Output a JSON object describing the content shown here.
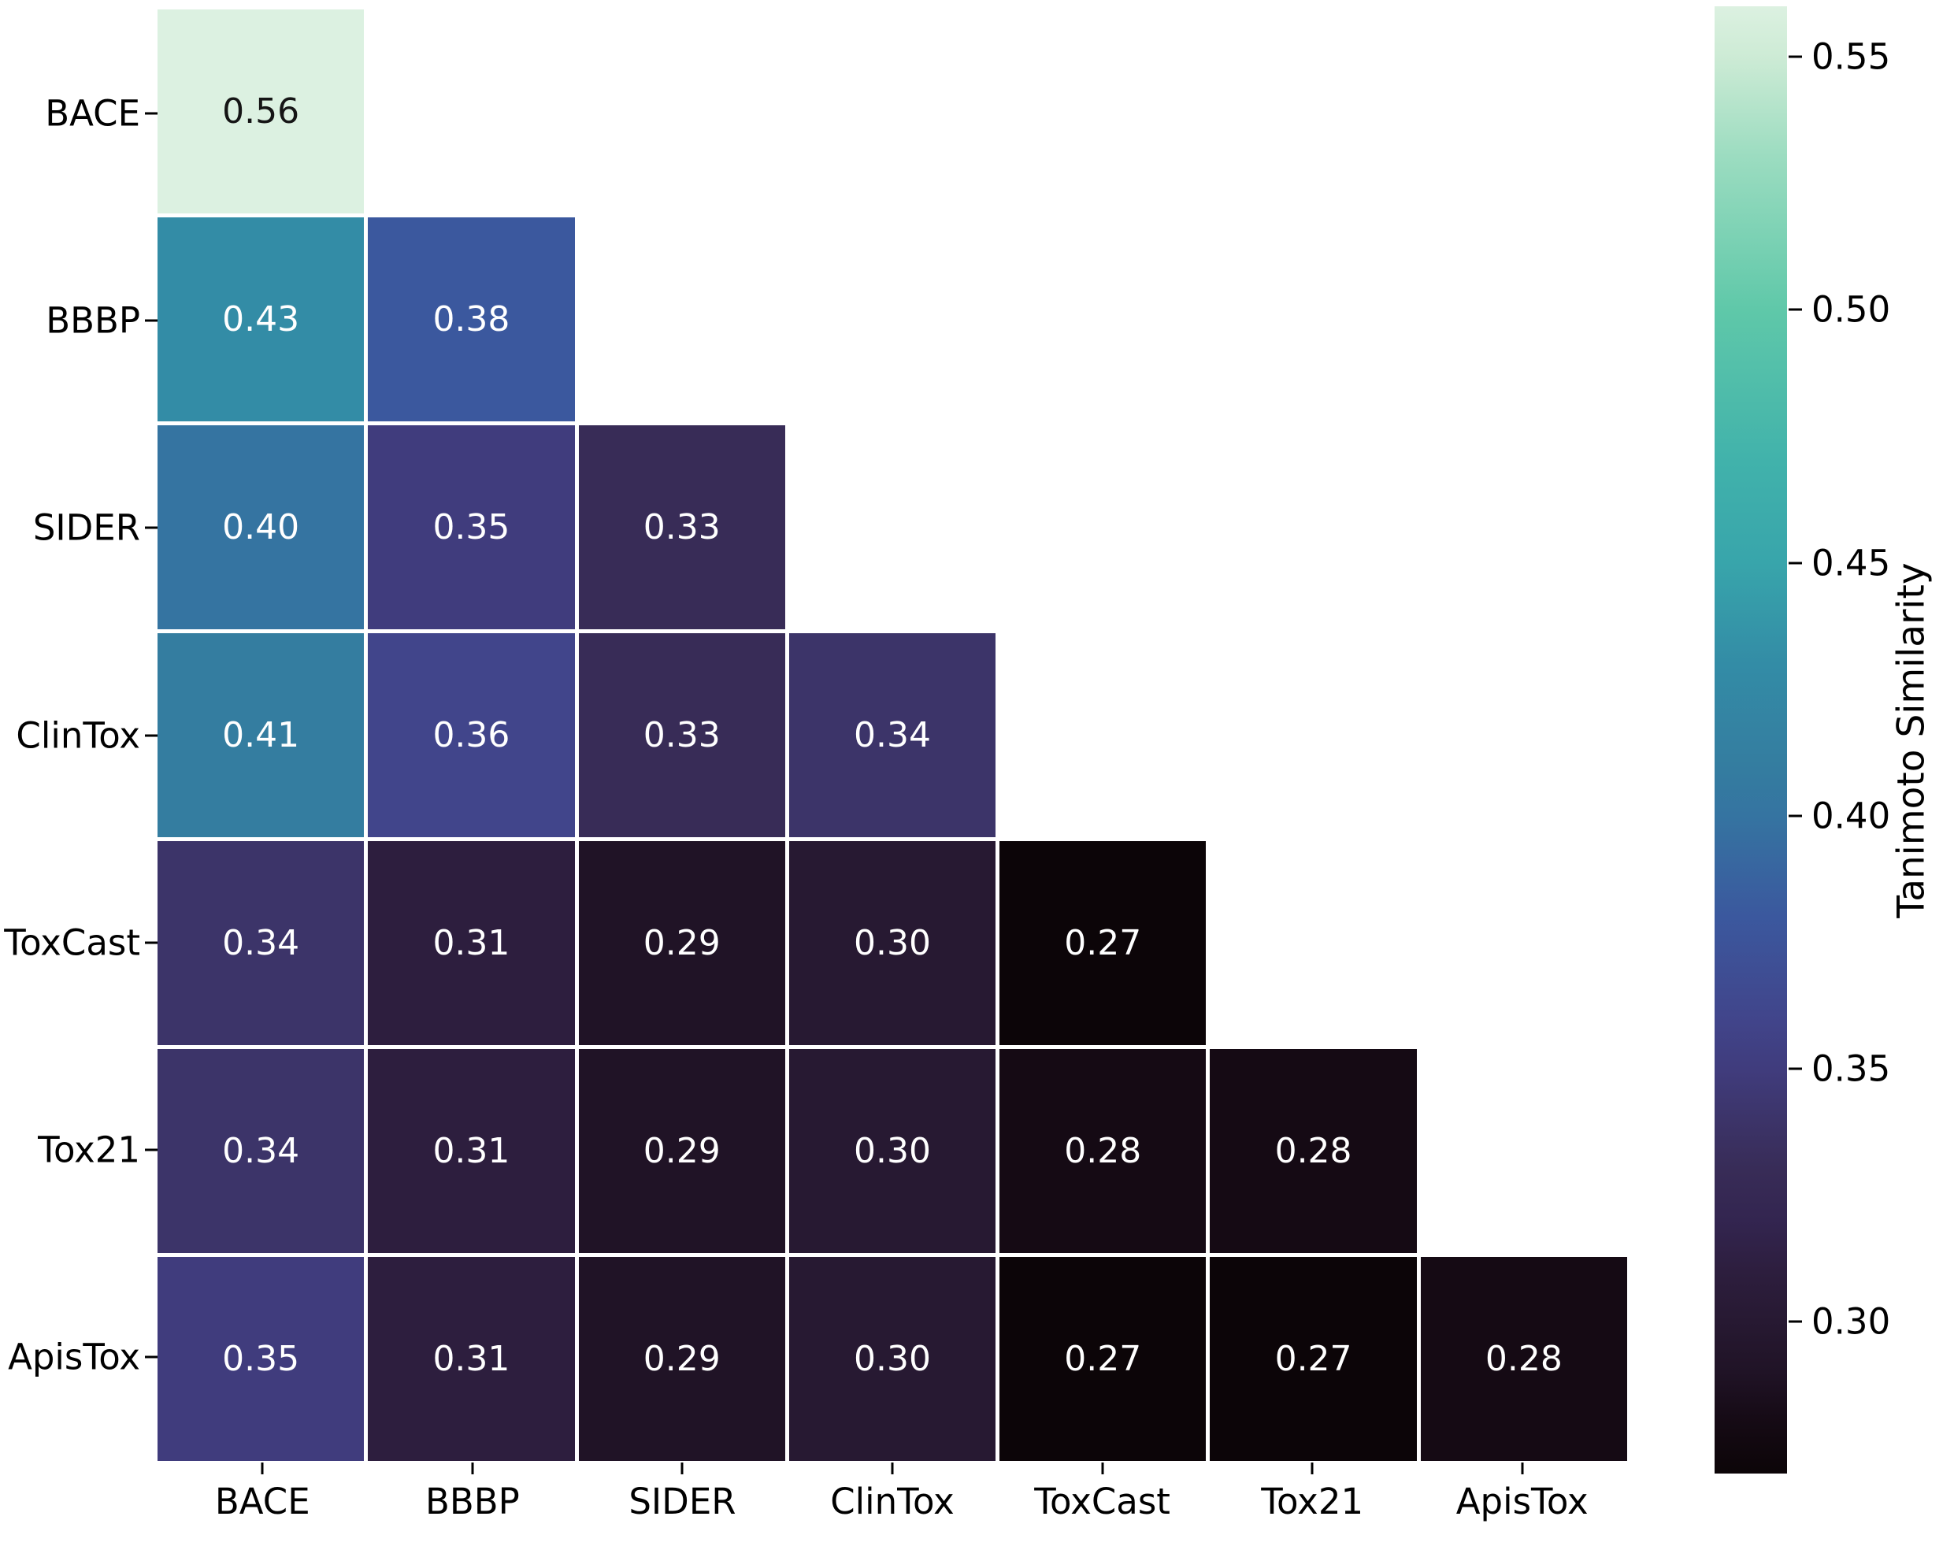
{
  "chart_data": {
    "type": "heatmap",
    "title": "",
    "categories": [
      "BACE",
      "BBBP",
      "SIDER",
      "ClinTox",
      "ToxCast",
      "Tox21",
      "ApisTox"
    ],
    "matrix": [
      [
        0.56,
        null,
        null,
        null,
        null,
        null,
        null
      ],
      [
        0.43,
        0.38,
        null,
        null,
        null,
        null,
        null
      ],
      [
        0.4,
        0.35,
        0.33,
        null,
        null,
        null,
        null
      ],
      [
        0.41,
        0.36,
        0.33,
        0.34,
        null,
        null,
        null
      ],
      [
        0.34,
        0.31,
        0.29,
        0.3,
        0.27,
        null,
        null
      ],
      [
        0.34,
        0.31,
        0.29,
        0.3,
        0.28,
        0.28,
        null
      ],
      [
        0.35,
        0.31,
        0.29,
        0.3,
        0.27,
        0.27,
        0.28
      ]
    ],
    "annotations": [
      [
        "0.56"
      ],
      [
        "0.43",
        "0.38"
      ],
      [
        "0.40",
        "0.35",
        "0.33"
      ],
      [
        "0.41",
        "0.36",
        "0.33",
        "0.34"
      ],
      [
        "0.34",
        "0.31",
        "0.29",
        "0.30",
        "0.27"
      ],
      [
        "0.34",
        "0.31",
        "0.29",
        "0.30",
        "0.28",
        "0.28"
      ],
      [
        "0.35",
        "0.31",
        "0.29",
        "0.30",
        "0.27",
        "0.27",
        "0.28"
      ]
    ],
    "value_format_decimals": 2,
    "mask": "upper-triangle",
    "colorbar": {
      "label": "Tanimoto Similarity",
      "vmin": 0.27,
      "vmax": 0.56,
      "ticks": [
        0.3,
        0.35,
        0.4,
        0.45,
        0.5,
        0.55
      ]
    },
    "colormap": {
      "name": "mako",
      "stops": [
        {
          "v": 0.27,
          "hex": "#0C0508"
        },
        {
          "v": 0.28,
          "hex": "#150A14"
        },
        {
          "v": 0.29,
          "hex": "#201326"
        },
        {
          "v": 0.3,
          "hex": "#271932"
        },
        {
          "v": 0.31,
          "hex": "#2D1E3E"
        },
        {
          "v": 0.32,
          "hex": "#332550"
        },
        {
          "v": 0.33,
          "hex": "#382C57"
        },
        {
          "v": 0.34,
          "hex": "#3C3469"
        },
        {
          "v": 0.35,
          "hex": "#403C7D"
        },
        {
          "v": 0.36,
          "hex": "#41458B"
        },
        {
          "v": 0.38,
          "hex": "#3B589E"
        },
        {
          "v": 0.4,
          "hex": "#3574A1"
        },
        {
          "v": 0.41,
          "hex": "#347DA0"
        },
        {
          "v": 0.43,
          "hex": "#338CA6"
        },
        {
          "v": 0.45,
          "hex": "#38A5AB"
        },
        {
          "v": 0.47,
          "hex": "#41B2AB"
        },
        {
          "v": 0.5,
          "hex": "#5FC8A9"
        },
        {
          "v": 0.53,
          "hex": "#9BDCC0"
        },
        {
          "v": 0.55,
          "hex": "#CDEBD5"
        },
        {
          "v": 0.56,
          "hex": "#DCF1E1"
        }
      ]
    },
    "style": {
      "grid_line_color": "#FFFFFF",
      "axis_tick_color": "#000000",
      "annotation_color_on_dark": "#FFFFFF",
      "annotation_color_on_light": "#151515",
      "background": "#FFFFFF"
    },
    "layout_hints": {
      "legend_position": "right-colorbar",
      "grid": "white cell separators",
      "x_axis_labels_rotation": 0,
      "y_axis_labels_rotation": 0
    }
  }
}
